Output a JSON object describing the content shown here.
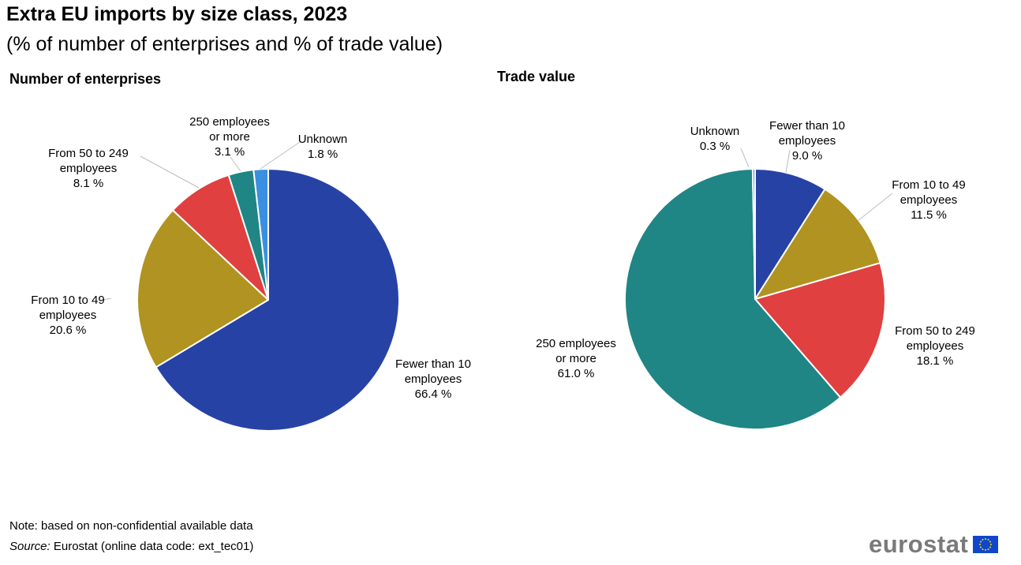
{
  "title": "Extra EU imports by size class, 2023",
  "subtitle": "(% of number of enterprises and % of trade value)",
  "note": "Note: based on non-confidential available data",
  "source_label": "Source:",
  "source_text": " Eurostat (online data code: ext_tec01)",
  "logo": {
    "text": "eurostat",
    "flag_icon": "eu-flag-icon"
  },
  "colors": {
    "fewer_than_10": "#2742A5",
    "from_10_to_49": "#B09320",
    "from_50_to_249": "#E04040",
    "250_or_more": "#208585",
    "unknown": "#3A8FE0"
  },
  "chart_data": [
    {
      "type": "pie",
      "title": "Number of enterprises",
      "slices": [
        {
          "label": [
            "Fewer than 10",
            "employees"
          ],
          "value": 66.4,
          "value_label": "66.4 %",
          "color": "#2742A5"
        },
        {
          "label": [
            "From 10 to 49",
            "employees"
          ],
          "value": 20.6,
          "value_label": "20.6 %",
          "color": "#B09320"
        },
        {
          "label": [
            "From 50 to 249",
            "employees"
          ],
          "value": 8.1,
          "value_label": "8.1 %",
          "color": "#E04040"
        },
        {
          "label": [
            "250 employees",
            "or more"
          ],
          "value": 3.1,
          "value_label": "3.1 %",
          "color": "#208585"
        },
        {
          "label": [
            "Unknown"
          ],
          "value": 1.8,
          "value_label": "1.8 %",
          "color": "#3A8FE0"
        }
      ]
    },
    {
      "type": "pie",
      "title": "Trade value",
      "slices": [
        {
          "label": [
            "Fewer than 10",
            "employees"
          ],
          "value": 9.0,
          "value_label": "9.0 %",
          "color": "#2742A5"
        },
        {
          "label": [
            "From 10 to 49",
            "employees"
          ],
          "value": 11.5,
          "value_label": "11.5 %",
          "color": "#B09320"
        },
        {
          "label": [
            "From 50 to 249",
            "employees"
          ],
          "value": 18.1,
          "value_label": "18.1 %",
          "color": "#E04040"
        },
        {
          "label": [
            "250 employees",
            "or more"
          ],
          "value": 61.0,
          "value_label": "61.0 %",
          "color": "#208585"
        },
        {
          "label": [
            "Unknown"
          ],
          "value": 0.3,
          "value_label": "0.3 %",
          "color": "#3A8FE0"
        }
      ]
    }
  ]
}
